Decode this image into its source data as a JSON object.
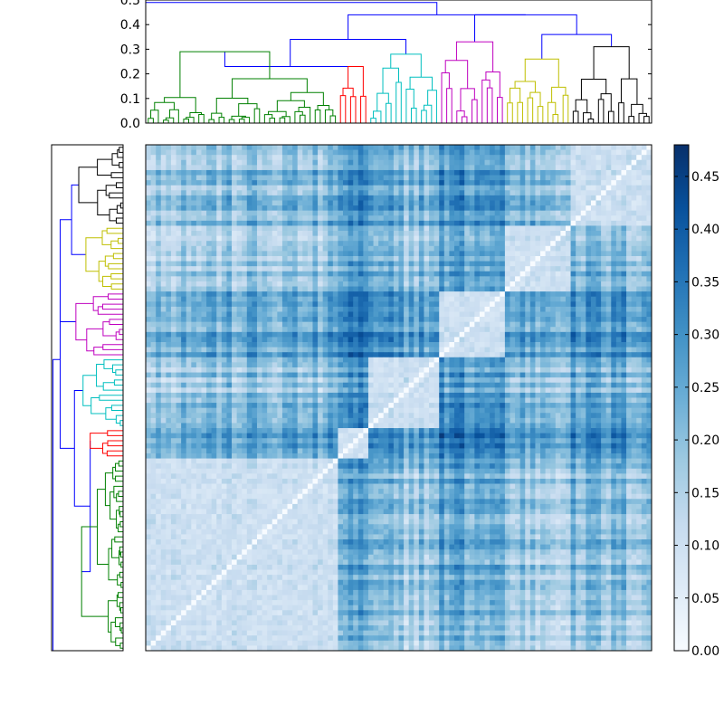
{
  "chart_data": [
    {
      "type": "dendrogram",
      "orientation": "top",
      "y_ticks": [
        "0.0",
        "0.1",
        "0.2",
        "0.3",
        "0.4",
        "0.5"
      ],
      "ylim": [
        0,
        0.5
      ],
      "link_color_above_threshold": "#0000ff",
      "clusters": [
        {
          "color": "#008000",
          "height": 0.29,
          "leaf_count": 38
        },
        {
          "color": "#ff0000",
          "height": 0.23,
          "leaf_count": 6
        },
        {
          "color": "#00bfbf",
          "height": 0.28,
          "leaf_count": 14
        },
        {
          "color": "#bf00bf",
          "height": 0.33,
          "leaf_count": 13
        },
        {
          "color": "#bfbf00",
          "height": 0.26,
          "leaf_count": 13
        },
        {
          "color": "#000000",
          "height": 0.31,
          "leaf_count": 16
        }
      ],
      "upper_links": [
        {
          "joins": [
            "green",
            "red"
          ],
          "height": 0.23
        },
        {
          "joins": [
            "green+red",
            "cyan"
          ],
          "height": 0.34
        },
        {
          "joins": [
            "left",
            "right"
          ],
          "height": 0.44
        },
        {
          "joins": [
            "magenta",
            "yellow+black"
          ],
          "height": 0.44
        },
        {
          "joins": [
            "yellow",
            "black"
          ],
          "height": 0.36
        },
        {
          "joins": [
            "all"
          ],
          "height": 0.49
        }
      ]
    },
    {
      "type": "dendrogram",
      "orientation": "left",
      "mirror_of": "top dendrogram",
      "y_ticks": [],
      "leaf_order_top_to_bottom": [
        "black",
        "yellow",
        "magenta",
        "cyan",
        "red",
        "green"
      ]
    },
    {
      "type": "heatmap",
      "description_of_structure": "symmetric distance matrix in dendrogram leaf order; zero diagonal",
      "n": 100,
      "vmin": 0.0,
      "vmax": 0.48,
      "colormap": "Blues",
      "low_distance_blocks": [
        "red",
        "cyan",
        "magenta",
        "yellow",
        "black",
        "green"
      ],
      "high_distance_bands": [
        "red vs others",
        "magenta vs others"
      ]
    },
    {
      "type": "colorbar",
      "ticks": [
        "0.00",
        "0.05",
        "0.10",
        "0.15",
        "0.20",
        "0.25",
        "0.30",
        "0.35",
        "0.40",
        "0.45"
      ],
      "vmin": 0.0,
      "vmax": 0.48,
      "colormap": "Blues"
    }
  ]
}
